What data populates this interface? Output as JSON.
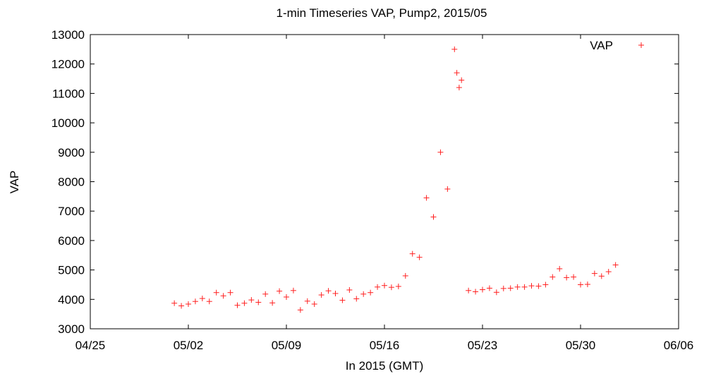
{
  "chart_data": {
    "type": "scatter",
    "title": "1-min Timeseries VAP, Pump2, 2015/05",
    "xlabel": "In 2015 (GMT)",
    "ylabel": "VAP",
    "xlim": [
      "2015-04-25",
      "2015-06-06"
    ],
    "ylim": [
      3000,
      13000
    ],
    "xticks": [
      "04/25",
      "05/02",
      "05/09",
      "05/16",
      "05/23",
      "05/30",
      "06/06"
    ],
    "xtick_dates": [
      "2015-04-25",
      "2015-05-02",
      "2015-05-09",
      "2015-05-16",
      "2015-05-23",
      "2015-05-30",
      "2015-06-06"
    ],
    "yticks": [
      3000,
      4000,
      5000,
      6000,
      7000,
      8000,
      9000,
      10000,
      11000,
      12000,
      13000
    ],
    "grid": false,
    "legend": {
      "position": "top-right"
    },
    "marker": "plus",
    "series": [
      {
        "name": "VAP",
        "color": "#ff2020",
        "points": [
          [
            "2015-05-01 00:00",
            3870
          ],
          [
            "2015-05-01 12:00",
            3780
          ],
          [
            "2015-05-02 00:00",
            3840
          ],
          [
            "2015-05-02 12:00",
            3930
          ],
          [
            "2015-05-03 00:00",
            4030
          ],
          [
            "2015-05-03 12:00",
            3930
          ],
          [
            "2015-05-04 00:00",
            4230
          ],
          [
            "2015-05-04 12:00",
            4120
          ],
          [
            "2015-05-05 00:00",
            4230
          ],
          [
            "2015-05-05 12:00",
            3800
          ],
          [
            "2015-05-06 00:00",
            3870
          ],
          [
            "2015-05-06 12:00",
            3980
          ],
          [
            "2015-05-07 00:00",
            3900
          ],
          [
            "2015-05-07 12:00",
            4180
          ],
          [
            "2015-05-08 00:00",
            3880
          ],
          [
            "2015-05-08 12:00",
            4280
          ],
          [
            "2015-05-09 00:00",
            4080
          ],
          [
            "2015-05-09 12:00",
            4300
          ],
          [
            "2015-05-10 00:00",
            3640
          ],
          [
            "2015-05-10 12:00",
            3940
          ],
          [
            "2015-05-11 00:00",
            3840
          ],
          [
            "2015-05-11 12:00",
            4150
          ],
          [
            "2015-05-12 00:00",
            4290
          ],
          [
            "2015-05-12 12:00",
            4200
          ],
          [
            "2015-05-13 00:00",
            3970
          ],
          [
            "2015-05-13 12:00",
            4320
          ],
          [
            "2015-05-14 00:00",
            4020
          ],
          [
            "2015-05-14 12:00",
            4180
          ],
          [
            "2015-05-15 00:00",
            4230
          ],
          [
            "2015-05-15 12:00",
            4420
          ],
          [
            "2015-05-16 00:00",
            4470
          ],
          [
            "2015-05-16 12:00",
            4410
          ],
          [
            "2015-05-17 00:00",
            4440
          ],
          [
            "2015-05-17 12:00",
            4800
          ],
          [
            "2015-05-18 00:00",
            5550
          ],
          [
            "2015-05-18 12:00",
            5430
          ],
          [
            "2015-05-19 00:00",
            7450
          ],
          [
            "2015-05-19 12:00",
            6800
          ],
          [
            "2015-05-20 00:00",
            9000
          ],
          [
            "2015-05-20 12:00",
            7750
          ],
          [
            "2015-05-21 00:00",
            12500
          ],
          [
            "2015-05-21 04:00",
            11700
          ],
          [
            "2015-05-21 08:00",
            11200
          ],
          [
            "2015-05-21 12:00",
            11450
          ],
          [
            "2015-05-22 00:00",
            4300
          ],
          [
            "2015-05-22 12:00",
            4260
          ],
          [
            "2015-05-23 00:00",
            4330
          ],
          [
            "2015-05-23 12:00",
            4380
          ],
          [
            "2015-05-24 00:00",
            4240
          ],
          [
            "2015-05-24 12:00",
            4370
          ],
          [
            "2015-05-25 00:00",
            4380
          ],
          [
            "2015-05-25 12:00",
            4420
          ],
          [
            "2015-05-26 00:00",
            4420
          ],
          [
            "2015-05-26 12:00",
            4460
          ],
          [
            "2015-05-27 00:00",
            4450
          ],
          [
            "2015-05-27 12:00",
            4500
          ],
          [
            "2015-05-28 00:00",
            4760
          ],
          [
            "2015-05-28 12:00",
            5040
          ],
          [
            "2015-05-29 00:00",
            4740
          ],
          [
            "2015-05-29 12:00",
            4760
          ],
          [
            "2015-05-30 00:00",
            4500
          ],
          [
            "2015-05-30 12:00",
            4510
          ],
          [
            "2015-05-31 00:00",
            4880
          ],
          [
            "2015-05-31 12:00",
            4790
          ],
          [
            "2015-06-01 00:00",
            4940
          ],
          [
            "2015-06-01 12:00",
            5170
          ]
        ]
      }
    ]
  }
}
